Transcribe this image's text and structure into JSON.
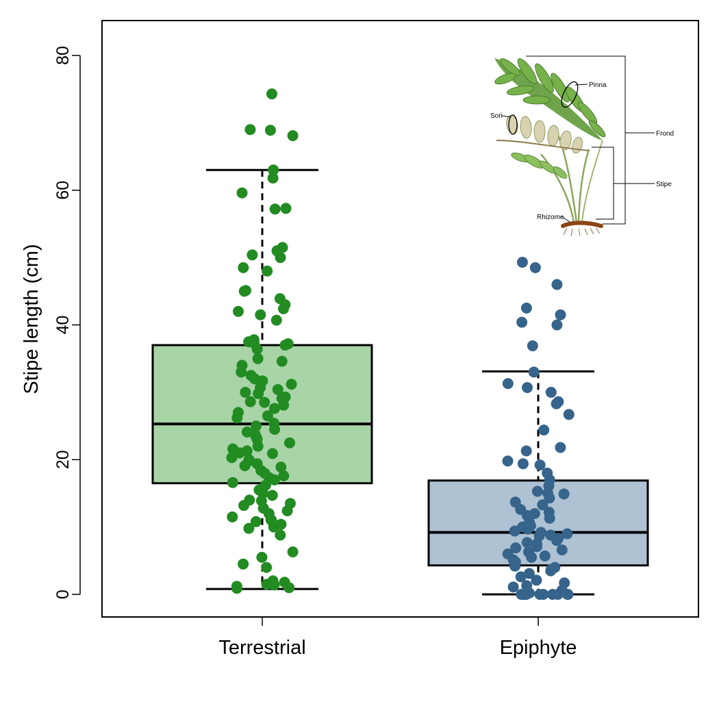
{
  "chart_data": {
    "type": "box",
    "title": "",
    "xlabel": "",
    "ylabel": "Stipe length  (cm)",
    "ylim": [
      -3,
      85
    ],
    "yticks": [
      0,
      20,
      40,
      60,
      80
    ],
    "yticks_labels": [
      "0",
      "20",
      "40",
      "60",
      "80"
    ],
    "categories": [
      "Terrestrial",
      "Epiphyte"
    ],
    "grid": false,
    "legend": "none",
    "series": [
      {
        "category": "Terrestrial",
        "fill_color": "#a8d4a8",
        "point_color": "#228b22",
        "box": {
          "whisker_low": 0.8,
          "q1": 16.5,
          "median": 25.3,
          "q3": 37.0,
          "whisker_high": 63.0
        },
        "points": [
          74.3,
          69.0,
          68.9,
          68.1,
          63.0,
          61.8,
          59.6,
          57.3,
          57.2,
          51.5,
          51.0,
          50.4,
          50.0,
          48.5,
          48.0,
          45.1,
          45.0,
          43.9,
          43.0,
          42.4,
          42.0,
          41.5,
          40.7,
          37.8,
          37.5,
          37.3,
          37.2,
          37.0,
          36.4,
          35.0,
          34.6,
          34.0,
          33.0,
          32.5,
          32.0,
          31.7,
          31.2,
          30.7,
          30.4,
          30.0,
          29.8,
          29.3,
          29.1,
          28.6,
          28.5,
          28.1,
          27.6,
          27.0,
          26.5,
          26.2,
          25.4,
          25.0,
          24.5,
          24.1,
          23.8,
          23.4,
          23.0,
          22.5,
          22.0,
          21.6,
          21.3,
          21.0,
          20.9,
          20.3,
          20.0,
          19.8,
          19.4,
          19.1,
          18.9,
          18.4,
          18.0,
          17.6,
          17.3,
          17.0,
          16.6,
          16.2,
          15.5,
          15.0,
          14.7,
          14.0,
          13.9,
          13.5,
          13.2,
          12.8,
          12.4,
          12.0,
          11.5,
          11.1,
          11.0,
          10.8,
          10.4,
          10.0,
          9.8,
          8.8,
          6.3,
          5.5,
          4.5,
          4.0,
          2.0,
          1.8,
          1.5,
          1.4,
          1.2,
          1.0,
          0.9
        ]
      },
      {
        "category": "Epiphyte",
        "fill_color": "#aec2d4",
        "point_color": "#36648b",
        "box": {
          "whisker_low": 0.0,
          "q1": 4.3,
          "median": 9.2,
          "q3": 16.9,
          "whisker_high": 33.1
        },
        "points": [
          49.3,
          48.5,
          46.0,
          42.5,
          41.5,
          40.4,
          40.0,
          36.9,
          33.0,
          31.3,
          30.7,
          30.0,
          28.6,
          28.3,
          26.7,
          24.4,
          21.8,
          21.3,
          19.8,
          19.4,
          19.2,
          18.0,
          17.0,
          16.1,
          15.3,
          15.0,
          14.9,
          14.3,
          13.7,
          13.3,
          12.6,
          12.2,
          12.0,
          11.7,
          11.3,
          10.7,
          10.2,
          10.0,
          9.7,
          9.4,
          9.2,
          9.0,
          8.8,
          8.7,
          8.3,
          8.0,
          7.7,
          7.5,
          7.1,
          6.9,
          6.6,
          6.3,
          6.0,
          5.7,
          5.5,
          5.1,
          4.8,
          4.5,
          4.2,
          4.0,
          3.7,
          3.5,
          3.1,
          2.6,
          2.1,
          1.7,
          1.3,
          1.1,
          0.6,
          0.2,
          0.0,
          0.0,
          0.0,
          0.0,
          0.0,
          0.0,
          0.0,
          0.0,
          0.0,
          0.0,
          0.0
        ]
      }
    ],
    "inset": {
      "labels": [
        "Pinna",
        "Sori",
        "Frond",
        "Stipe",
        "Rhizome"
      ]
    }
  }
}
